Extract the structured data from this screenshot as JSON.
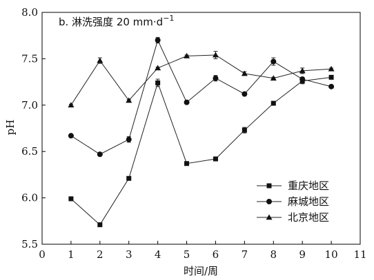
{
  "chart_data": {
    "type": "line",
    "title": "b. 淋洗强度 20 mm·d",
    "title_superscript": "−1",
    "xlabel": "时间/周",
    "ylabel": "pH",
    "xlim": [
      0,
      11
    ],
    "ylim": [
      5.5,
      8.0
    ],
    "xticks": [
      "0",
      "1",
      "2",
      "3",
      "4",
      "5",
      "6",
      "7",
      "8",
      "9",
      "10",
      "11"
    ],
    "yticks": [
      "5.5",
      "6.0",
      "6.5",
      "7.0",
      "7.5",
      "8.0"
    ],
    "grid": false,
    "legend_position": "lower-right",
    "x": [
      1,
      2,
      3,
      4,
      5,
      6,
      7,
      8,
      9,
      10
    ],
    "series": [
      {
        "name": "重庆地区",
        "marker": "square",
        "values": [
          5.99,
          5.71,
          6.21,
          7.24,
          6.37,
          6.42,
          6.73,
          7.02,
          7.26,
          7.3
        ],
        "errors": [
          0.01,
          0.01,
          0.01,
          0.04,
          0.01,
          0.01,
          0.03,
          0.01,
          0.03,
          0.01
        ]
      },
      {
        "name": "麻城地区",
        "marker": "circle",
        "values": [
          6.67,
          6.47,
          6.63,
          7.7,
          7.03,
          7.29,
          7.12,
          7.47,
          7.28,
          7.2
        ],
        "errors": [
          0.01,
          0.01,
          0.03,
          0.03,
          0.01,
          0.03,
          0.01,
          0.04,
          0.02,
          0.01
        ]
      },
      {
        "name": "北京地区",
        "marker": "triangle",
        "values": [
          7.0,
          7.48,
          7.05,
          7.4,
          7.53,
          7.54,
          7.34,
          7.29,
          7.37,
          7.39
        ],
        "errors": [
          0.01,
          0.03,
          0.01,
          0.01,
          0.01,
          0.04,
          0.02,
          0.01,
          0.03,
          0.01
        ]
      }
    ]
  }
}
